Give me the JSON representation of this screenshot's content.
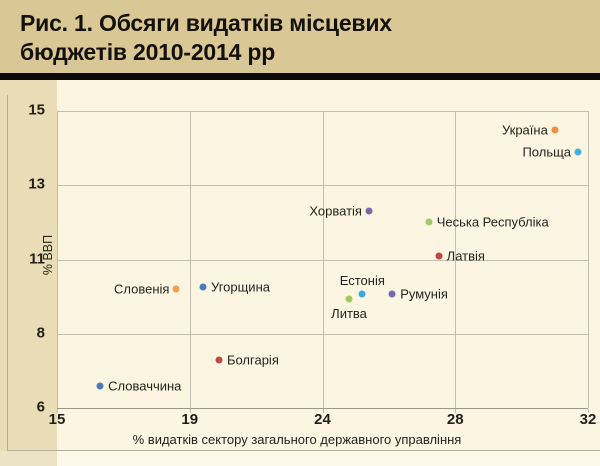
{
  "title": "Рис. 1. Обсяги видатків місцевих бюджетів 2010-2014 рр",
  "colors": {
    "banner_bg": "#d9c795",
    "bar": "#0d0b07",
    "plot_bg": "#fbf5e2",
    "band_bg": "#e8ddb6",
    "strip_bg": "#fdf8ea",
    "strip_band_bg": "#ece2c6",
    "grid": "#c3bdae",
    "axis": "#9d978a",
    "frame": "#b3ada0",
    "tick_text": "#221f1a",
    "label_text": "#26231e",
    "title_text": "#14110c"
  },
  "chart_data": {
    "type": "scatter",
    "title": "Рис. 1. Обсяги видатків місцевих бюджетів 2010-2014 рр",
    "xlabel": "% видатків сектору загального державного управління",
    "ylabel": "% ВВП",
    "x_ticks": [
      15,
      19,
      24,
      28,
      32
    ],
    "y_ticks": [
      15,
      13,
      11,
      8,
      6
    ],
    "xlim": [
      15,
      32
    ],
    "ylim": [
      6,
      15
    ],
    "grid": true,
    "legend": false,
    "points": [
      {
        "label": "Україна",
        "x": 31.0,
        "y": 14.5,
        "color": "#ef8e3c",
        "label_side": "left"
      },
      {
        "label": "Польща",
        "x": 31.7,
        "y": 13.9,
        "color": "#41b1e1",
        "label_side": "left"
      },
      {
        "label": "Хорватія",
        "x": 25.4,
        "y": 12.3,
        "color": "#7b68ae",
        "label_side": "left"
      },
      {
        "label": "Чеська Республіка",
        "x": 27.2,
        "y": 12.0,
        "color": "#a2c964",
        "label_side": "right"
      },
      {
        "label": "Латвія",
        "x": 27.5,
        "y": 11.1,
        "color": "#c2443f",
        "label_side": "right"
      },
      {
        "label": "Естонія",
        "x": 25.2,
        "y": 9.6,
        "color": "#3aabdc",
        "label_side": "above"
      },
      {
        "label": "Румунія",
        "x": 26.1,
        "y": 9.6,
        "color": "#7b68b4",
        "label_side": "right"
      },
      {
        "label": "Литва",
        "x": 24.8,
        "y": 9.4,
        "color": "#a2c95e",
        "label_side": "below"
      },
      {
        "label": "Словенія",
        "x": 18.6,
        "y": 9.8,
        "color": "#f0a04a",
        "label_side": "left"
      },
      {
        "label": "Угорщина",
        "x": 19.5,
        "y": 9.9,
        "color": "#4a7cbd",
        "label_side": "right"
      },
      {
        "label": "Болгарія",
        "x": 20.1,
        "y": 7.3,
        "color": "#bf4a44",
        "label_side": "right"
      },
      {
        "label": "Словаччина",
        "x": 16.3,
        "y": 6.6,
        "color": "#4a7cbd",
        "label_side": "right"
      }
    ]
  }
}
